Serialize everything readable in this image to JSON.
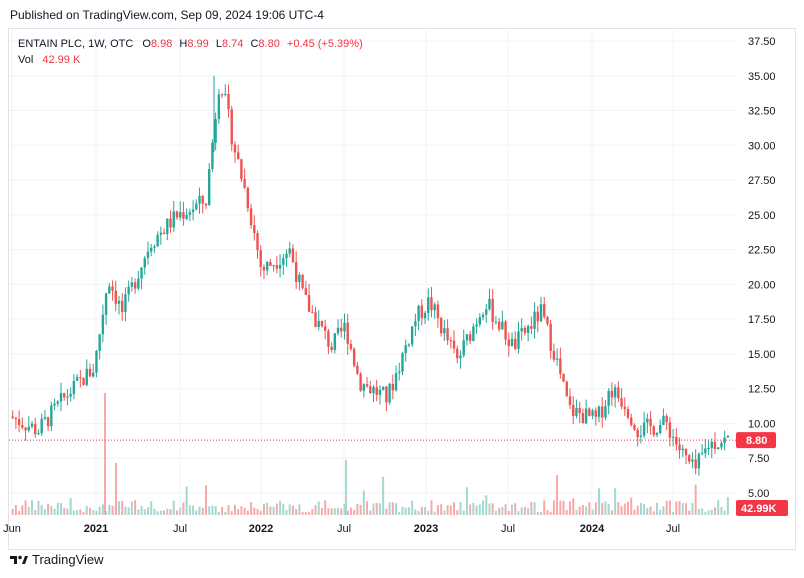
{
  "header": {
    "published": "Published on TradingView.com, Sep 09, 2024 19:06 UTC-4"
  },
  "legend": {
    "symbol": "ENTAIN PLC, 1W, OTC",
    "o_label": "O",
    "o_val": "8.98",
    "h_label": "H",
    "h_val": "8.99",
    "l_label": "L",
    "l_val": "8.74",
    "c_label": "C",
    "c_val": "8.80",
    "change": "+0.45 (+5.39%)",
    "vol_label": "Vol",
    "vol_val": "42.99 K"
  },
  "footer": {
    "brand": "TradingView"
  },
  "colors": {
    "up": "#26a69a",
    "down": "#ef5350",
    "grid": "#f0f3fa",
    "last": "#f23645"
  },
  "chart_data": {
    "type": "candlestick",
    "interval": "1W",
    "y_ticks": [
      "5.00",
      "7.50",
      "10.00",
      "12.50",
      "15.00",
      "17.50",
      "20.00",
      "22.50",
      "25.00",
      "27.50",
      "30.00",
      "32.50",
      "35.00",
      "37.50"
    ],
    "ylim": [
      5,
      38
    ],
    "x_ticks": [
      "Jun",
      "2021",
      "Jul",
      "2022",
      "Jul",
      "2023",
      "Jul",
      "2024",
      "Jul"
    ],
    "last_price": "8.80",
    "last_volume": "42.99K",
    "anchors": [
      {
        "t": "2020-06",
        "c": 10.5
      },
      {
        "t": "2020-08",
        "c": 9.5
      },
      {
        "t": "2020-10",
        "c": 12.0
      },
      {
        "t": "2020-12",
        "c": 14.0
      },
      {
        "t": "2021-01",
        "c": 20.5
      },
      {
        "t": "2021-02",
        "c": 18.0
      },
      {
        "t": "2021-04",
        "c": 23.0
      },
      {
        "t": "2021-06",
        "c": 25.0
      },
      {
        "t": "2021-08",
        "c": 26.0
      },
      {
        "t": "2021-09",
        "c": 35.0
      },
      {
        "t": "2021-10",
        "c": 30.0
      },
      {
        "t": "2021-11",
        "c": 26.0
      },
      {
        "t": "2021-12",
        "c": 21.0
      },
      {
        "t": "2022-02",
        "c": 22.5
      },
      {
        "t": "2022-03",
        "c": 19.0
      },
      {
        "t": "2022-05",
        "c": 15.5
      },
      {
        "t": "2022-06",
        "c": 17.0
      },
      {
        "t": "2022-07",
        "c": 13.0
      },
      {
        "t": "2022-09",
        "c": 11.8
      },
      {
        "t": "2022-11",
        "c": 17.5
      },
      {
        "t": "2022-12",
        "c": 18.8
      },
      {
        "t": "2023-02",
        "c": 14.5
      },
      {
        "t": "2023-04",
        "c": 18.8
      },
      {
        "t": "2023-06",
        "c": 15.5
      },
      {
        "t": "2023-08",
        "c": 18.0
      },
      {
        "t": "2023-09",
        "c": 15.0
      },
      {
        "t": "2023-10",
        "c": 11.0
      },
      {
        "t": "2023-12",
        "c": 10.2
      },
      {
        "t": "2024-01",
        "c": 12.5
      },
      {
        "t": "2024-02",
        "c": 11.5
      },
      {
        "t": "2024-03",
        "c": 9.5
      },
      {
        "t": "2024-05",
        "c": 10.0
      },
      {
        "t": "2024-06",
        "c": 8.0
      },
      {
        "t": "2024-07",
        "c": 6.5
      },
      {
        "t": "2024-08",
        "c": 8.5
      },
      {
        "t": "2024-09",
        "c": 8.8
      }
    ],
    "volume_max_k": 300
  }
}
